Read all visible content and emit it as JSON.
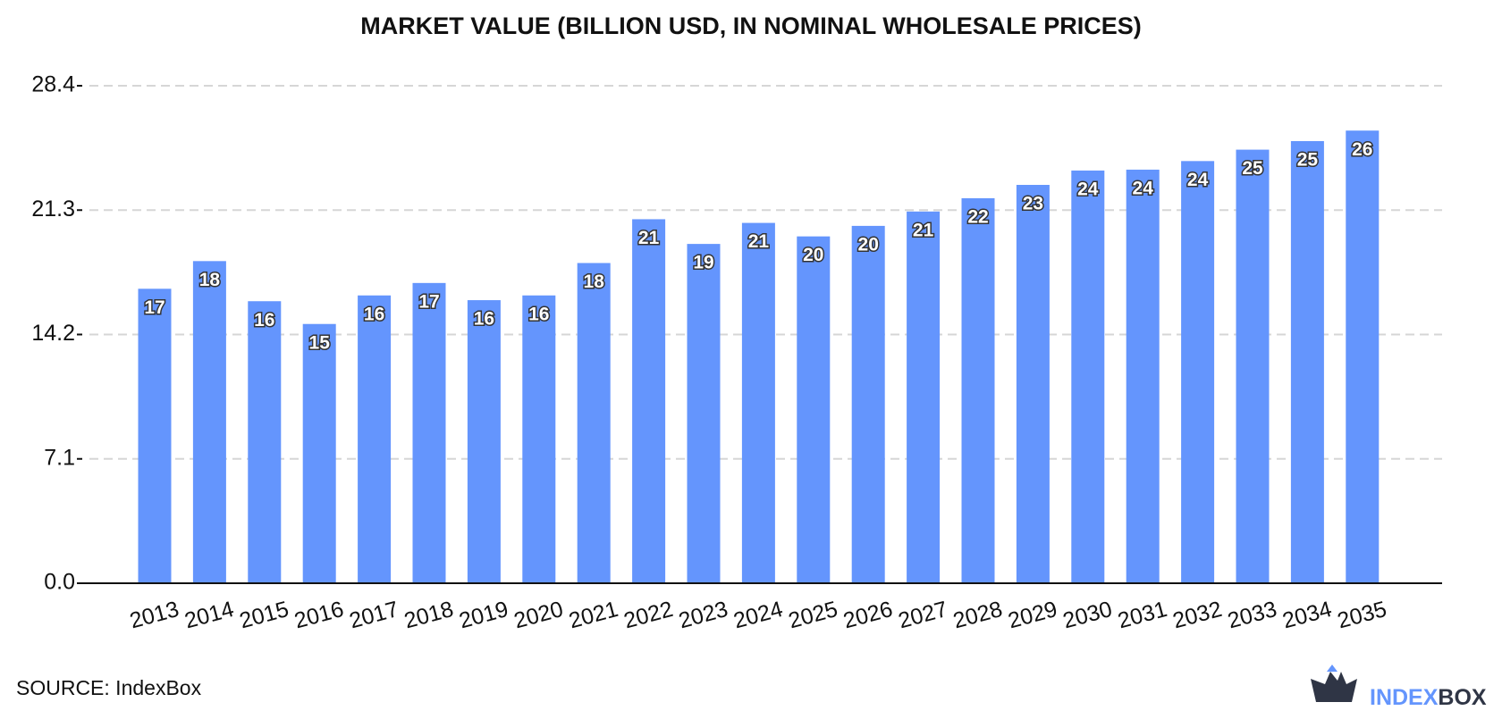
{
  "chart_data": {
    "type": "bar",
    "title": "MARKET VALUE (BILLION USD, IN NOMINAL WHOLESALE PRICES)",
    "categories": [
      "2013",
      "2014",
      "2015",
      "2016",
      "2017",
      "2018",
      "2019",
      "2020",
      "2021",
      "2022",
      "2023",
      "2024",
      "2025",
      "2026",
      "2027",
      "2028",
      "2029",
      "2030",
      "2031",
      "2032",
      "2033",
      "2034",
      "2035"
    ],
    "values": [
      16.81,
      18.39,
      16.1,
      14.8,
      16.43,
      17.14,
      16.16,
      16.43,
      18.28,
      20.78,
      19.37,
      20.57,
      19.8,
      20.4,
      21.22,
      21.98,
      22.74,
      23.56,
      23.61,
      24.1,
      24.75,
      25.24,
      25.84
    ],
    "value_labels": [
      "17",
      "18",
      "16",
      "15",
      "16",
      "17",
      "16",
      "16",
      "18",
      "21",
      "19",
      "21",
      "20",
      "20",
      "21",
      "22",
      "23",
      "24",
      "24",
      "24",
      "25",
      "25",
      "26"
    ],
    "color": "#6495fd",
    "ylim": [
      0,
      28.4
    ],
    "yticks": [
      {
        "value": 0,
        "label": "0.0"
      },
      7.1,
      14.2,
      21.3,
      28.4
    ],
    "grid": true
  },
  "source": "SOURCE: IndexBox",
  "logo": {
    "first": "INDEX",
    "second": "BOX"
  }
}
